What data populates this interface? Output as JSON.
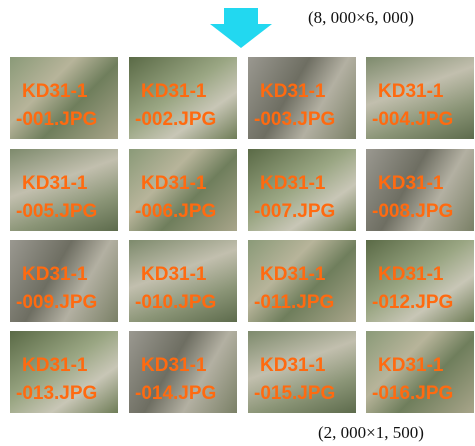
{
  "source_size": "(8, 000×6, 000)",
  "tile_size": "(2, 000×1, 500)",
  "tiles": [
    {
      "line1": "KD31-1",
      "line2": "-001.JPG"
    },
    {
      "line1": "KD31-1",
      "line2": "-002.JPG"
    },
    {
      "line1": "KD31-1",
      "line2": "-003.JPG"
    },
    {
      "line1": "KD31-1",
      "line2": "-004.JPG"
    },
    {
      "line1": "KD31-1",
      "line2": "-005.JPG"
    },
    {
      "line1": "KD31-1",
      "line2": "-006.JPG"
    },
    {
      "line1": "KD31-1",
      "line2": "-007.JPG"
    },
    {
      "line1": "KD31-1",
      "line2": "-008.JPG"
    },
    {
      "line1": "KD31-1",
      "line2": "-009.JPG"
    },
    {
      "line1": "KD31-1",
      "line2": "-010.JPG"
    },
    {
      "line1": "KD31-1",
      "line2": "-011.JPG"
    },
    {
      "line1": "KD31-1",
      "line2": "-012.JPG"
    },
    {
      "line1": "KD31-1",
      "line2": "-013.JPG"
    },
    {
      "line1": "KD31-1",
      "line2": "-014.JPG"
    },
    {
      "line1": "KD31-1",
      "line2": "-015.JPG"
    },
    {
      "line1": "KD31-1",
      "line2": "-016.JPG"
    }
  ]
}
